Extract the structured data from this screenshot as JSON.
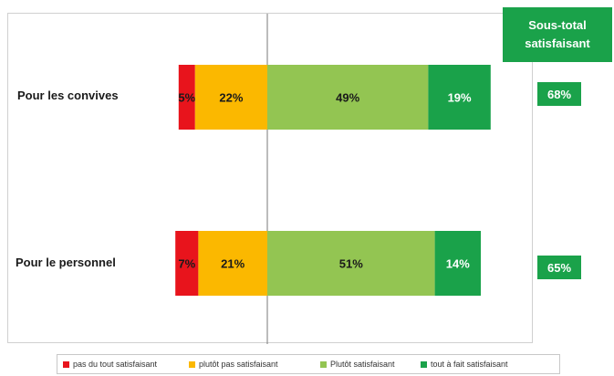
{
  "chart_data": {
    "type": "bar",
    "orientation": "horizontal-stacked",
    "categories": [
      "Pour les convives",
      "Pour le personnel"
    ],
    "series": [
      {
        "name": "pas du tout satisfaisant",
        "values": [
          5,
          7
        ],
        "labels": [
          "5%",
          "7%"
        ],
        "color": "#e8141c"
      },
      {
        "name": "plutôt pas satisfaisant",
        "values": [
          22,
          21
        ],
        "labels": [
          "22%",
          "21%"
        ],
        "color": "#fbb800"
      },
      {
        "name": "Plutôt satisfaisant",
        "values": [
          49,
          51
        ],
        "labels": [
          "49%",
          "51%"
        ],
        "color": "#93c552"
      },
      {
        "name": "tout à fait satisfaisant",
        "values": [
          19,
          14
        ],
        "labels": [
          "19%",
          "14%"
        ],
        "color": "#1aa24a"
      }
    ],
    "subtotal_header": [
      "Sous-total",
      "satisfaisant"
    ],
    "subtotals": [
      "68%",
      "65%"
    ],
    "legend_position": "bottom",
    "grid": false
  }
}
